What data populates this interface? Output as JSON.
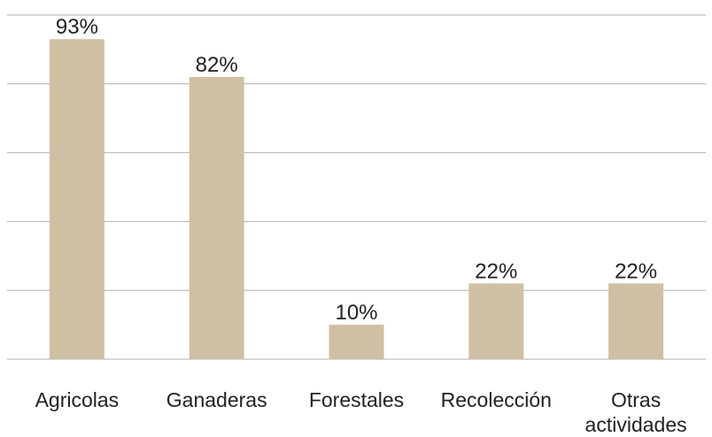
{
  "chart_data": {
    "type": "bar",
    "categories": [
      "Agricolas",
      "Ganaderas",
      "Forestales",
      "Recolección",
      "Otras actividades"
    ],
    "values": [
      93,
      82,
      10,
      22,
      22
    ],
    "value_labels": [
      "93%",
      "82%",
      "10%",
      "22%",
      "22%"
    ],
    "color": "#cfbfa3",
    "ylim": [
      0,
      100
    ],
    "yticks": [
      0,
      20,
      40,
      60,
      80,
      100
    ],
    "grid": true
  }
}
